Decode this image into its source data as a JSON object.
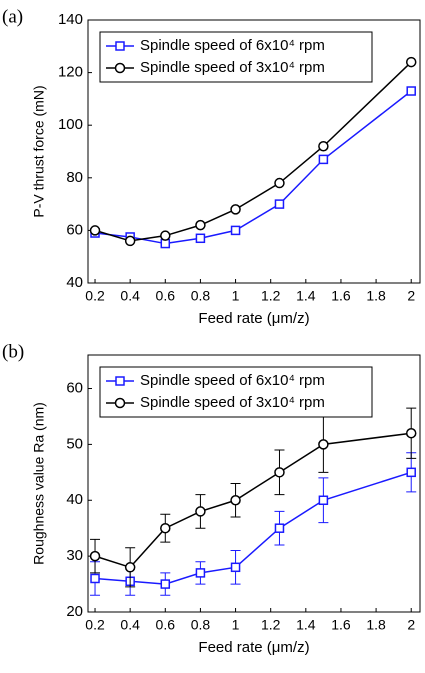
{
  "chart_data": [
    {
      "type": "line",
      "panel_label": "(a)",
      "x_label": "Feed rate  (μm/z)",
      "y_label": "P-V thrust force (mN)",
      "x": [
        0.2,
        0.4,
        0.6,
        0.8,
        1,
        1.25,
        1.5,
        2
      ],
      "xlim": [
        0.16,
        2.05
      ],
      "xticks": [
        0.2,
        0.4,
        0.6,
        0.8,
        1,
        1.2,
        1.4,
        1.6,
        1.8,
        2
      ],
      "ylim": [
        40,
        140
      ],
      "yticks": [
        40,
        60,
        80,
        100,
        120,
        140
      ],
      "legend": "upper-left",
      "series": [
        {
          "name": "Spindle speed of 6x10⁴ rpm",
          "color": "#1a1aff",
          "marker": "square",
          "values": [
            59,
            57.5,
            55,
            57,
            60,
            70,
            87,
            113
          ]
        },
        {
          "name": "Spindle speed of 3x10⁴ rpm",
          "color": "#000000",
          "marker": "circle",
          "values": [
            60,
            56,
            58,
            62,
            68,
            78,
            92,
            124
          ]
        }
      ]
    },
    {
      "type": "errorbar",
      "panel_label": "(b)",
      "x_label": "Feed rate  (μm/z)",
      "y_label": "Roughness value Ra (nm)",
      "x": [
        0.2,
        0.4,
        0.6,
        0.8,
        1,
        1.25,
        1.5,
        2
      ],
      "xlim": [
        0.16,
        2.05
      ],
      "xticks": [
        0.2,
        0.4,
        0.6,
        0.8,
        1,
        1.2,
        1.4,
        1.6,
        1.8,
        2
      ],
      "ylim": [
        20,
        66
      ],
      "yticks": [
        20,
        30,
        40,
        50,
        60
      ],
      "legend": "upper-left",
      "series": [
        {
          "name": "Spindle speed of 6x10⁴ rpm",
          "color": "#1a1aff",
          "marker": "square",
          "values": [
            26,
            25.5,
            25,
            27,
            28,
            35,
            40,
            45
          ],
          "errors": [
            3,
            2.5,
            2,
            2,
            3,
            3,
            4,
            3.5
          ]
        },
        {
          "name": "Spindle speed of 3x10⁴ rpm",
          "color": "#000000",
          "marker": "circle",
          "values": [
            30,
            28,
            35,
            38,
            40,
            45,
            50,
            52
          ],
          "errors": [
            3,
            3.5,
            2.5,
            3,
            3,
            4,
            5,
            4.5
          ]
        }
      ]
    }
  ]
}
